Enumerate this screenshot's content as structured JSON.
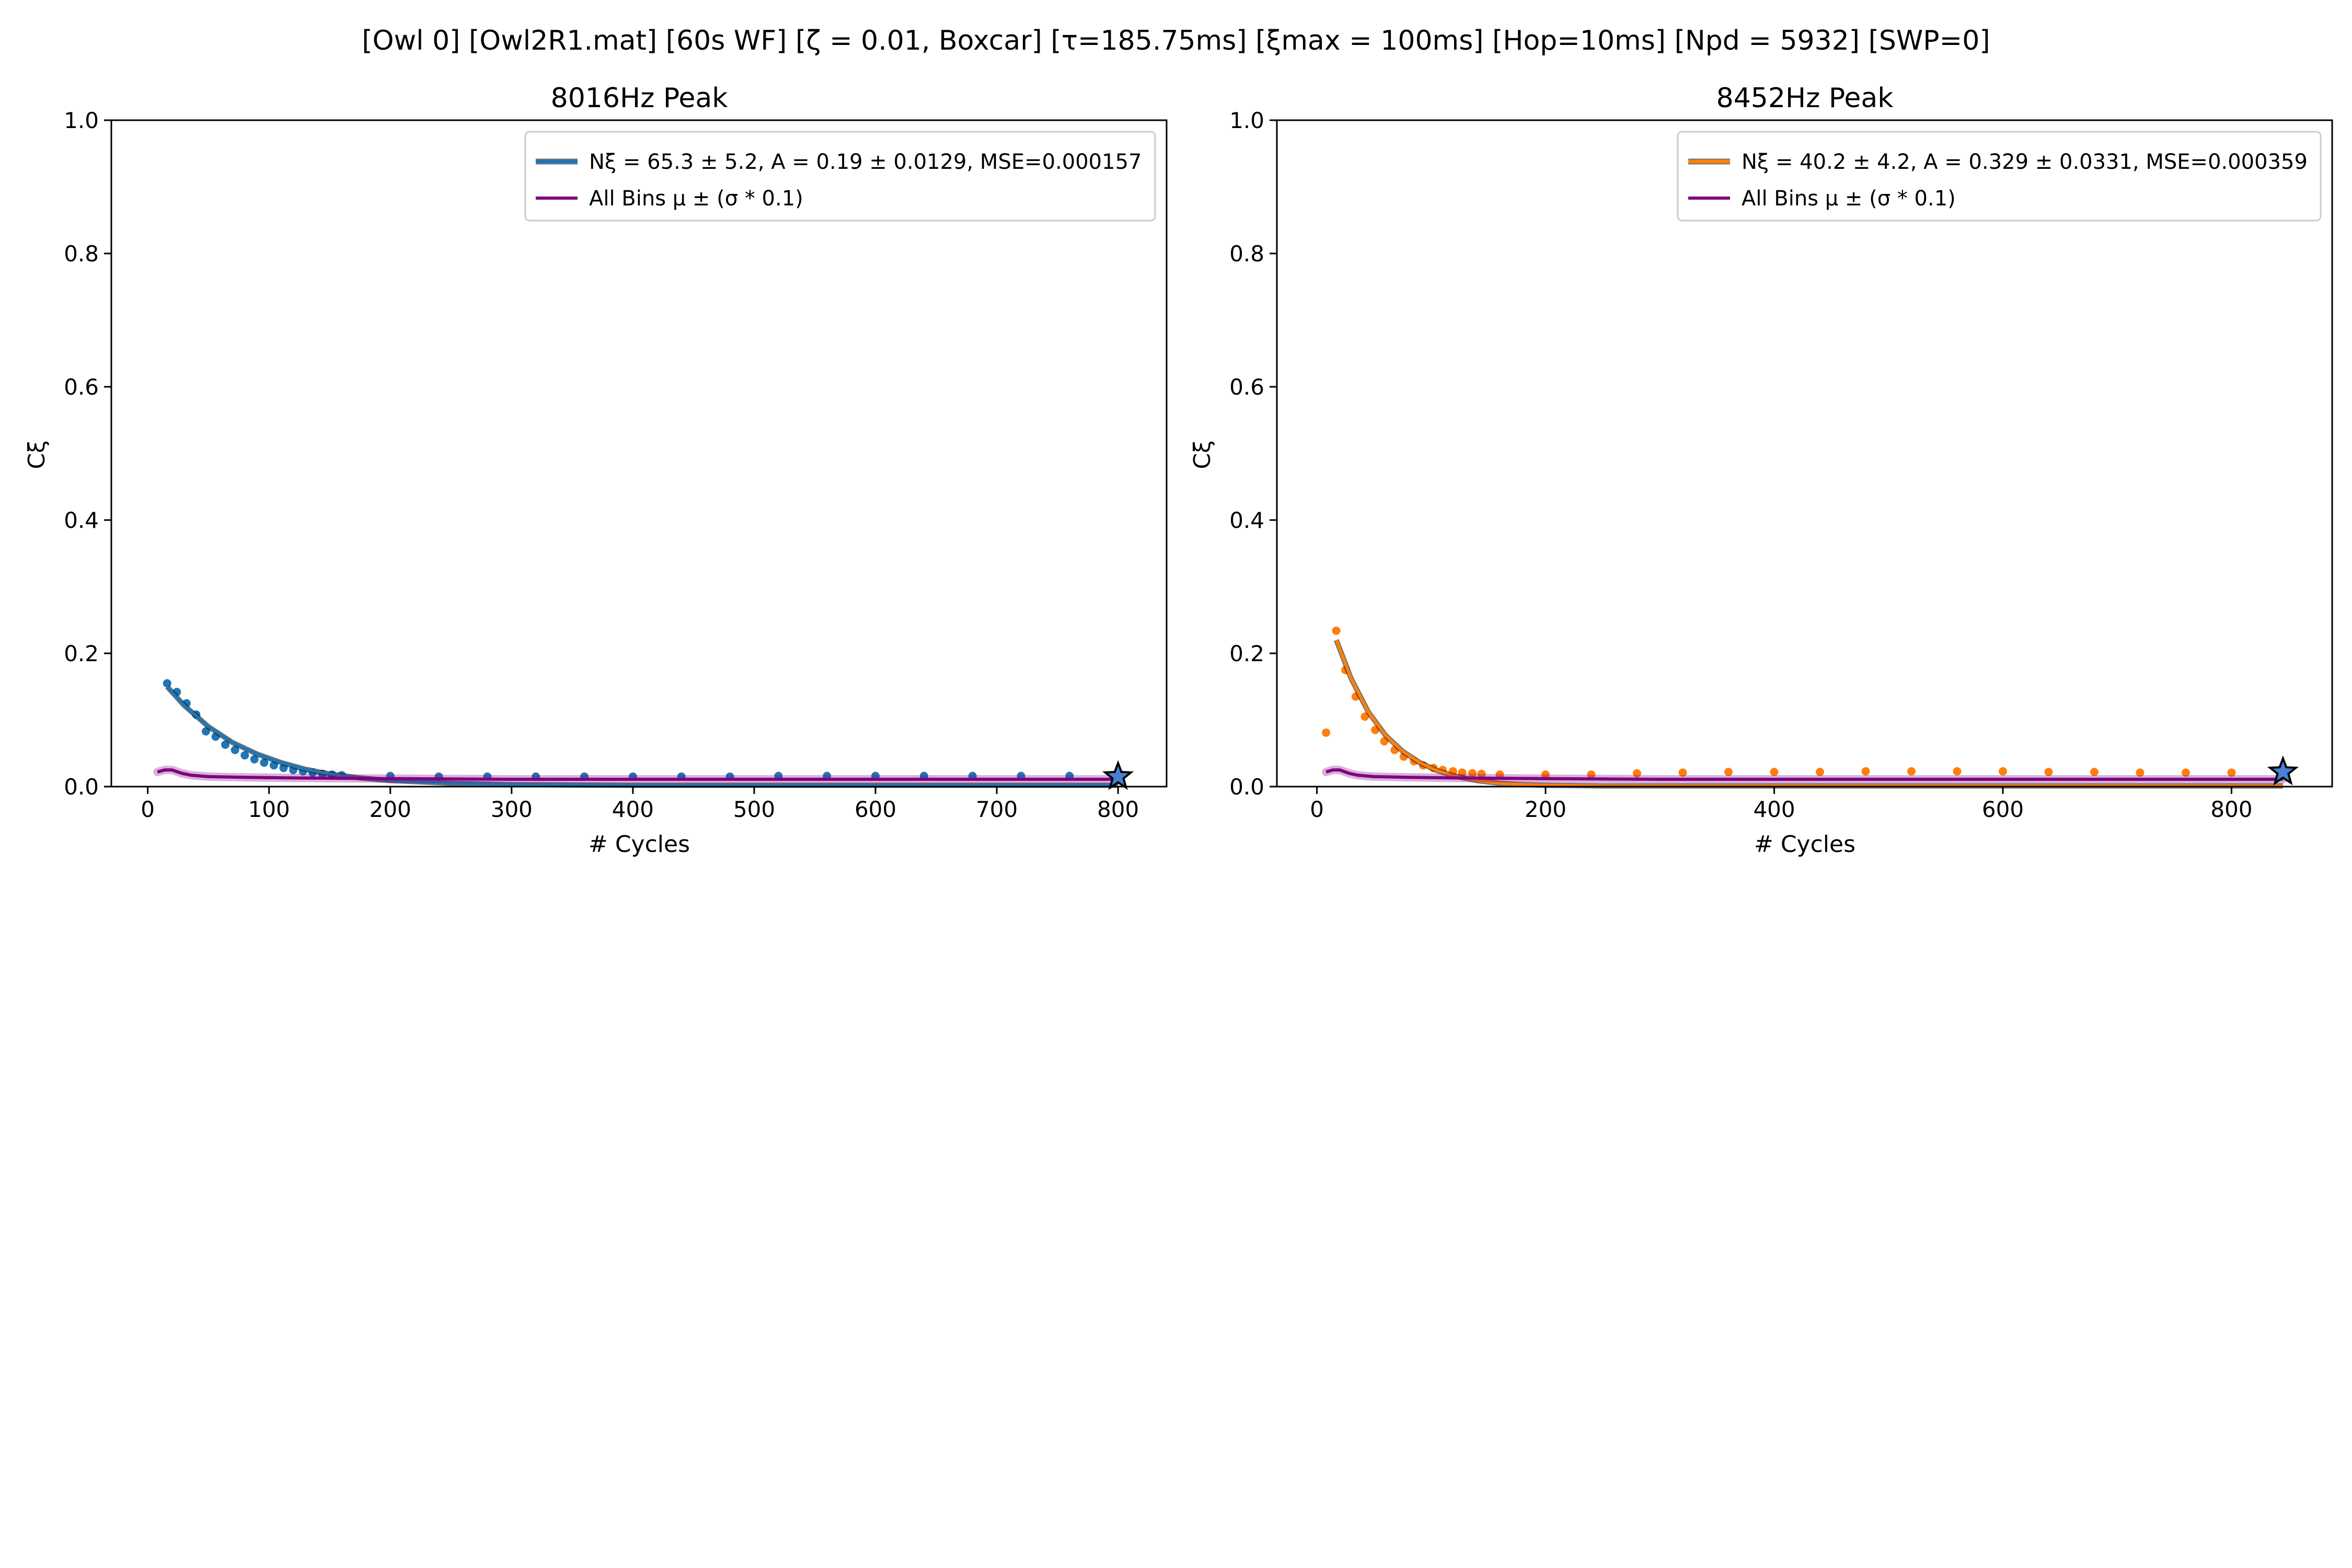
{
  "suptitle": "[Owl 0]   [Owl2R1.mat]   [60s WF]   [ζ = 0.01, Boxcar]   [τ=185.75ms]   [ξmax = 100ms]   [Hop=10ms]   [Npd = 5932]   [SWP=0]",
  "colors": {
    "fit_blue": "#1f77b4",
    "fit_orange": "#ff7f0e",
    "mean_purple": "#800080",
    "star": "#4a7fd4"
  },
  "chart_data": [
    {
      "type": "scatter",
      "title": "8016Hz Peak",
      "xlabel": "# Cycles",
      "ylabel": "Cξ",
      "xlim": [
        -30,
        840
      ],
      "ylim": [
        0,
        1.0
      ],
      "xticks": [
        0,
        100,
        200,
        300,
        400,
        500,
        600,
        700,
        800
      ],
      "yticks": [
        0.0,
        0.2,
        0.4,
        0.6,
        0.8,
        1.0
      ],
      "grid": false,
      "legend_position": "top-right",
      "legend": [
        "Nξ = 65.3 ± 5.2, A = 0.19 ± 0.0129, MSE=0.000157",
        "All Bins μ ± (σ * 0.1)"
      ],
      "series": [
        {
          "name": "Nξ = 65.3 ± 5.2, A = 0.19 ± 0.0129, MSE=0.000157",
          "kind": "points",
          "color": "#1f77b4",
          "x": [
            16,
            24,
            32,
            40,
            48,
            56,
            64,
            72,
            80,
            88,
            96,
            104,
            112,
            120,
            128,
            136,
            144,
            152,
            160,
            200,
            240,
            280,
            320,
            360,
            400,
            440,
            480,
            520,
            560,
            600,
            640,
            680,
            720,
            760,
            800
          ],
          "y": [
            0.155,
            0.142,
            0.125,
            0.108,
            0.083,
            0.075,
            0.063,
            0.055,
            0.047,
            0.041,
            0.036,
            0.032,
            0.028,
            0.025,
            0.023,
            0.021,
            0.019,
            0.018,
            0.017,
            0.016,
            0.015,
            0.015,
            0.015,
            0.015,
            0.015,
            0.015,
            0.015,
            0.016,
            0.016,
            0.016,
            0.016,
            0.016,
            0.016,
            0.016,
            0.016
          ]
        },
        {
          "name": "fit",
          "kind": "line",
          "color": "#1f77b4",
          "x": [
            16,
            30,
            50,
            70,
            90,
            110,
            130,
            150,
            175,
            200,
            250,
            300,
            400,
            500,
            600,
            700,
            800
          ],
          "y": [
            0.15,
            0.122,
            0.09,
            0.066,
            0.049,
            0.036,
            0.026,
            0.019,
            0.013,
            0.009,
            0.005,
            0.003,
            0.002,
            0.002,
            0.002,
            0.002,
            0.002
          ]
        },
        {
          "name": "All Bins μ ± (σ * 0.1)",
          "kind": "line",
          "color": "#800080",
          "x": [
            8,
            14,
            20,
            28,
            36,
            50,
            80,
            120,
            200,
            300,
            400,
            500,
            600,
            700,
            800
          ],
          "y": [
            0.022,
            0.025,
            0.025,
            0.02,
            0.017,
            0.015,
            0.014,
            0.013,
            0.012,
            0.011,
            0.011,
            0.011,
            0.011,
            0.011,
            0.011
          ]
        },
        {
          "name": "",
          "kind": "star",
          "color": "#4a7fd4",
          "x": [
            800
          ],
          "y": [
            0.015
          ]
        }
      ]
    },
    {
      "type": "scatter",
      "title": "8452Hz Peak",
      "xlabel": "# Cycles",
      "ylabel": "Cξ",
      "xlim": [
        -35,
        888
      ],
      "ylim": [
        0,
        1.0
      ],
      "xticks": [
        0,
        200,
        400,
        600,
        800
      ],
      "yticks": [
        0.0,
        0.2,
        0.4,
        0.6,
        0.8,
        1.0
      ],
      "grid": false,
      "legend_position": "top-right",
      "legend": [
        "Nξ = 40.2 ± 4.2, A = 0.329 ± 0.0331, MSE=0.000359",
        "All Bins μ ± (σ * 0.1)"
      ],
      "series": [
        {
          "name": "Nξ = 40.2 ± 4.2, A = 0.329 ± 0.0331, MSE=0.000359",
          "kind": "points",
          "color": "#ff7f0e",
          "x": [
            8,
            17,
            25,
            34,
            42,
            51,
            59,
            68,
            76,
            85,
            93,
            102,
            110,
            119,
            127,
            136,
            144,
            160,
            200,
            240,
            280,
            320,
            360,
            400,
            440,
            480,
            520,
            560,
            600,
            640,
            680,
            720,
            760,
            800,
            845
          ],
          "y": [
            0.081,
            0.234,
            0.175,
            0.135,
            0.105,
            0.085,
            0.068,
            0.055,
            0.045,
            0.038,
            0.032,
            0.028,
            0.025,
            0.023,
            0.021,
            0.02,
            0.019,
            0.018,
            0.018,
            0.018,
            0.02,
            0.021,
            0.022,
            0.022,
            0.022,
            0.023,
            0.023,
            0.023,
            0.023,
            0.022,
            0.022,
            0.021,
            0.021,
            0.021,
            0.02
          ]
        },
        {
          "name": "fit",
          "kind": "line",
          "color": "#ff7f0e",
          "x": [
            17,
            30,
            45,
            60,
            75,
            90,
            105,
            120,
            140,
            160,
            180,
            200,
            250,
            300,
            400,
            500,
            600,
            700,
            845
          ],
          "y": [
            0.22,
            0.162,
            0.112,
            0.077,
            0.053,
            0.036,
            0.024,
            0.016,
            0.009,
            0.005,
            0.003,
            0.002,
            0.001,
            0.001,
            0.001,
            0.001,
            0.001,
            0.001,
            0.001
          ]
        },
        {
          "name": "All Bins μ ± (σ * 0.1)",
          "kind": "line",
          "color": "#800080",
          "x": [
            8,
            14,
            20,
            28,
            36,
            50,
            80,
            120,
            200,
            300,
            400,
            500,
            600,
            700,
            845
          ],
          "y": [
            0.022,
            0.025,
            0.025,
            0.02,
            0.017,
            0.015,
            0.014,
            0.013,
            0.012,
            0.011,
            0.011,
            0.011,
            0.011,
            0.011,
            0.011
          ]
        },
        {
          "name": "",
          "kind": "star",
          "color": "#4a7fd4",
          "x": [
            845
          ],
          "y": [
            0.022
          ]
        }
      ]
    }
  ]
}
